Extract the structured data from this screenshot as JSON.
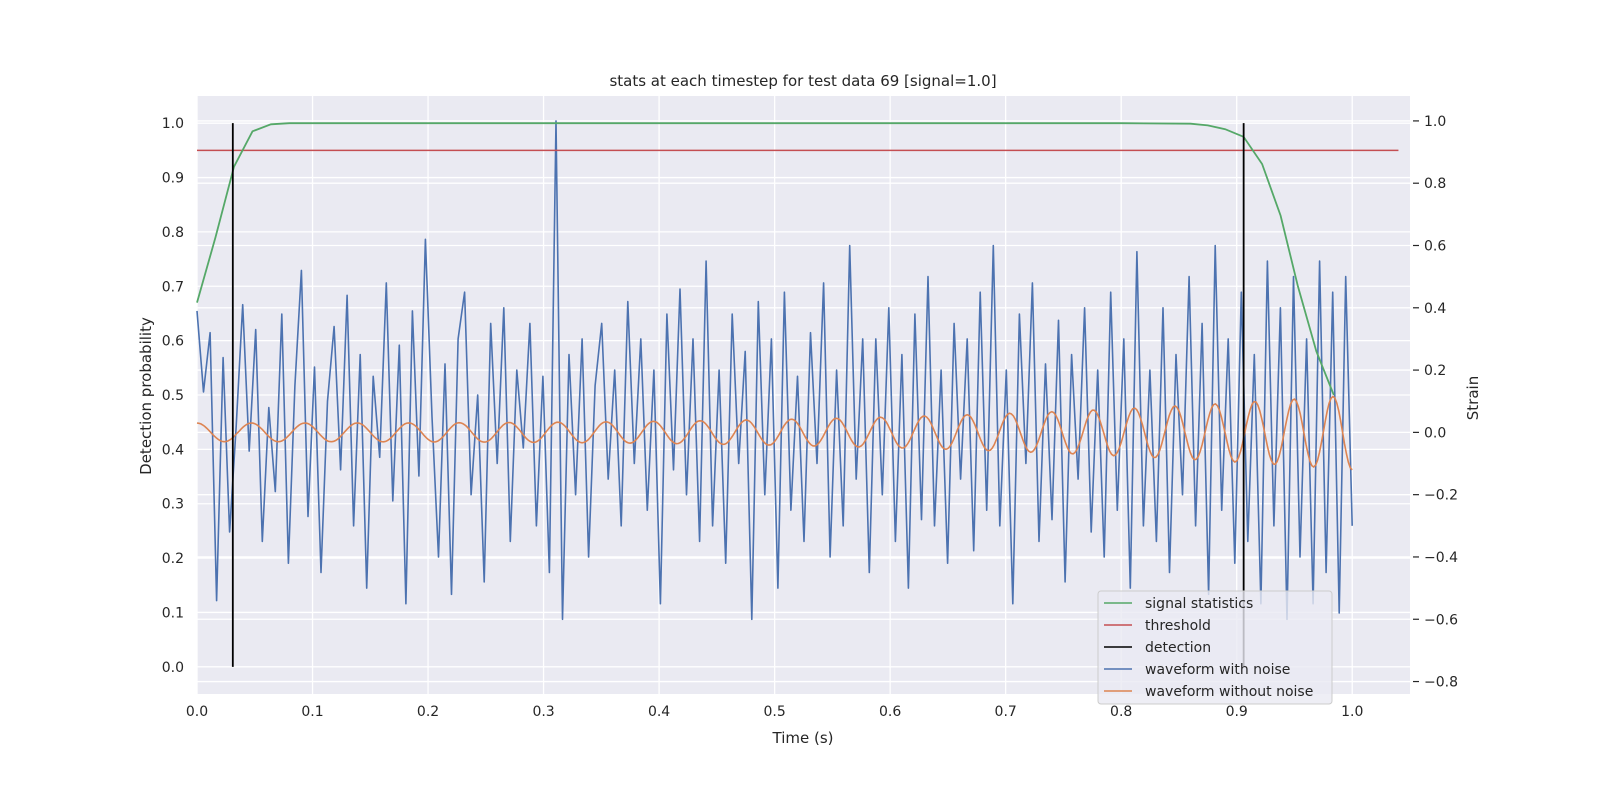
{
  "chart_data": {
    "type": "line",
    "title": "stats at each timestep for test data 69 [signal=1.0]",
    "xlabel": "Time (s)",
    "ylabel": "Detection probability",
    "y2label": "Strain",
    "xlim": [
      0.0,
      1.05
    ],
    "ylim": [
      -0.05,
      1.05
    ],
    "y2lim": [
      -0.84,
      1.08
    ],
    "x_ticks": [
      "0.0",
      "0.1",
      "0.2",
      "0.3",
      "0.4",
      "0.5",
      "0.6",
      "0.7",
      "0.8",
      "0.9",
      "1.0"
    ],
    "y_ticks": [
      "0.0",
      "0.1",
      "0.2",
      "0.3",
      "0.4",
      "0.5",
      "0.6",
      "0.7",
      "0.8",
      "0.9",
      "1.0"
    ],
    "y2_ticks": [
      "−0.8",
      "−0.6",
      "−0.4",
      "−0.2",
      "0.0",
      "0.2",
      "0.4",
      "0.6",
      "0.8",
      "1.0"
    ],
    "grid": true,
    "legend_position": "lower-right",
    "background_color": "#eaeaf2",
    "series": [
      {
        "name": "signal statistics",
        "color": "#55a868",
        "axis": "left",
        "x": [
          0.0,
          0.016,
          0.032,
          0.048,
          0.064,
          0.08,
          0.2,
          0.4,
          0.6,
          0.8,
          0.86,
          0.875,
          0.89,
          0.906,
          0.922,
          0.938,
          0.953,
          0.969,
          0.984
        ],
        "y": [
          0.67,
          0.79,
          0.92,
          0.985,
          0.998,
          1.0,
          1.0,
          1.0,
          1.0,
          1.0,
          0.999,
          0.996,
          0.989,
          0.975,
          0.925,
          0.83,
          0.7,
          0.58,
          0.5
        ]
      },
      {
        "name": "threshold",
        "color": "#c44e52",
        "axis": "left",
        "x": [
          0.0,
          1.04
        ],
        "y": [
          0.95,
          0.95
        ]
      },
      {
        "name": "detection",
        "color": "#000000",
        "axis": "left",
        "x": [
          0.031,
          0.906
        ],
        "y": [
          1.0,
          1.0
        ]
      },
      {
        "name": "waveform with noise",
        "color": "#4c72b0",
        "axis": "right",
        "x_range": [
          0.0,
          1.0
        ],
        "values": [
          0.39,
          0.13,
          0.32,
          -0.54,
          0.24,
          -0.32,
          0.02,
          0.41,
          -0.06,
          0.33,
          -0.35,
          0.08,
          -0.19,
          0.38,
          -0.42,
          0.15,
          0.52,
          -0.27,
          0.21,
          -0.45,
          0.1,
          0.34,
          -0.12,
          0.44,
          -0.3,
          0.25,
          -0.5,
          0.18,
          -0.08,
          0.48,
          -0.22,
          0.28,
          -0.55,
          0.39,
          -0.14,
          0.62,
          0.05,
          -0.4,
          0.22,
          -0.52,
          0.3,
          0.45,
          -0.2,
          0.12,
          -0.48,
          0.35,
          -0.1,
          0.4,
          -0.35,
          0.2,
          -0.05,
          0.35,
          -0.3,
          0.18,
          -0.45,
          1.0,
          -0.6,
          0.25,
          -0.2,
          0.3,
          -0.4,
          0.15,
          0.35,
          -0.15,
          0.2,
          -0.3,
          0.42,
          -0.1,
          0.3,
          -0.25,
          0.2,
          -0.55,
          0.38,
          -0.12,
          0.46,
          -0.2,
          0.3,
          -0.35,
          0.55,
          -0.3,
          0.2,
          -0.42,
          0.38,
          -0.1,
          0.26,
          -0.6,
          0.42,
          -0.2,
          0.3,
          -0.5,
          0.45,
          -0.25,
          0.18,
          -0.35,
          0.32,
          -0.1,
          0.48,
          -0.4,
          0.2,
          -0.3,
          0.6,
          -0.15,
          0.3,
          -0.45,
          0.3,
          -0.2,
          0.4,
          -0.35,
          0.25,
          -0.5,
          0.38,
          -0.28,
          0.5,
          -0.3,
          0.2,
          -0.42,
          0.35,
          -0.15,
          0.3,
          -0.38,
          0.45,
          -0.25,
          0.6,
          -0.3,
          0.2,
          -0.55,
          0.38,
          -0.1,
          0.48,
          -0.35,
          0.22,
          -0.28,
          0.36,
          -0.48,
          0.25,
          -0.15,
          0.4,
          -0.32,
          0.2,
          -0.4,
          0.45,
          -0.25,
          0.3,
          -0.5,
          0.58,
          -0.3,
          0.2,
          -0.35,
          0.4,
          -0.45,
          0.25,
          -0.2,
          0.5,
          -0.3,
          0.35,
          -0.52,
          0.6,
          -0.25,
          0.3,
          -0.42,
          0.45,
          -0.35,
          0.25,
          -0.55,
          0.55,
          -0.3,
          0.4,
          -0.6,
          0.5,
          -0.4,
          0.3,
          -0.55,
          0.55,
          -0.45,
          0.45,
          -0.58,
          0.5,
          -0.3
        ]
      },
      {
        "name": "waveform without noise",
        "color": "#dd8452",
        "axis": "right",
        "x_range": [
          0.0,
          1.0
        ],
        "chirp": {
          "f0": 21,
          "f1": 30,
          "a0": 0.03,
          "a1": 0.12
        }
      }
    ]
  }
}
